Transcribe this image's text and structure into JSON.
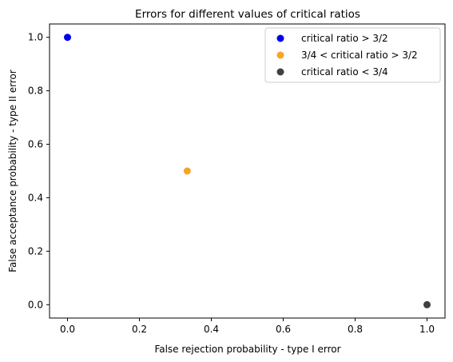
{
  "chart_data": {
    "type": "scatter",
    "title": "Errors for different values of critical ratios",
    "xlabel": "False rejection probability - type I error",
    "ylabel": "False acceptance probability - type II error",
    "xlim": [
      -0.05,
      1.05
    ],
    "ylim": [
      -0.05,
      1.05
    ],
    "xticks": [
      0.0,
      0.2,
      0.4,
      0.6,
      0.8,
      1.0
    ],
    "yticks": [
      0.0,
      0.2,
      0.4,
      0.6,
      0.8,
      1.0
    ],
    "xtick_labels": [
      "0.0",
      "0.2",
      "0.4",
      "0.6",
      "0.8",
      "1.0"
    ],
    "ytick_labels": [
      "0.0",
      "0.2",
      "0.4",
      "0.6",
      "0.8",
      "1.0"
    ],
    "grid": false,
    "legend_position": "top-right",
    "series": [
      {
        "name": "critical ratio > 3/2",
        "color": "#0000ee",
        "points": [
          {
            "x": 0.0,
            "y": 1.0
          }
        ]
      },
      {
        "name": "3/4 < critical ratio > 3/2",
        "color": "#f5a623",
        "points": [
          {
            "x": 0.333,
            "y": 0.5
          }
        ]
      },
      {
        "name": "critical ratio < 3/4",
        "color": "#404040",
        "points": [
          {
            "x": 1.0,
            "y": 0.0
          }
        ]
      }
    ]
  }
}
